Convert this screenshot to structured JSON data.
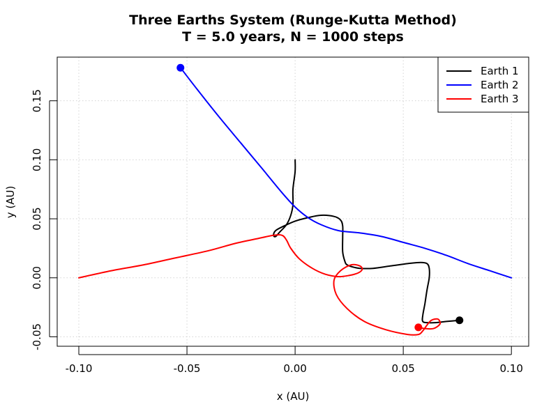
{
  "chart_data": {
    "type": "line",
    "title": "Three Earths System (Runge-Kutta Method)",
    "subtitle": "T = 5.0 years, N = 1000 steps",
    "xlabel": "x (AU)",
    "ylabel": "y (AU)",
    "xlim": [
      -0.11,
      0.108
    ],
    "ylim": [
      -0.058,
      0.187
    ],
    "xticks": [
      -0.1,
      -0.05,
      0.0,
      0.05,
      0.1
    ],
    "xtick_labels": [
      "-0.10",
      "-0.05",
      "0.00",
      "0.05",
      "0.10"
    ],
    "yticks": [
      -0.05,
      0.0,
      0.05,
      0.1,
      0.15
    ],
    "ytick_labels": [
      "-0.05",
      "0.00",
      "0.05",
      "0.10",
      "0.15"
    ],
    "grid": true,
    "legend_position": "top-right",
    "series": [
      {
        "name": "Earth 1",
        "color": "#000000",
        "points": [
          [
            0.0,
            0.1
          ],
          [
            0.0,
            0.09
          ],
          [
            -0.001,
            0.075
          ],
          [
            -0.001,
            0.062
          ],
          [
            -0.002,
            0.053
          ],
          [
            -0.004,
            0.045
          ],
          [
            -0.007,
            0.039
          ],
          [
            -0.009,
            0.035
          ],
          [
            -0.01,
            0.036
          ],
          [
            -0.009,
            0.04
          ],
          [
            -0.005,
            0.044
          ],
          [
            0.0,
            0.048
          ],
          [
            0.006,
            0.051
          ],
          [
            0.012,
            0.053
          ],
          [
            0.018,
            0.052
          ],
          [
            0.021,
            0.049
          ],
          [
            0.022,
            0.044
          ],
          [
            0.022,
            0.035
          ],
          [
            0.022,
            0.022
          ],
          [
            0.023,
            0.014
          ],
          [
            0.024,
            0.011
          ],
          [
            0.027,
            0.009
          ],
          [
            0.03,
            0.008
          ],
          [
            0.036,
            0.008
          ],
          [
            0.044,
            0.01
          ],
          [
            0.052,
            0.012
          ],
          [
            0.058,
            0.013
          ],
          [
            0.061,
            0.012
          ],
          [
            0.062,
            0.008
          ],
          [
            0.062,
            0.0
          ],
          [
            0.061,
            -0.01
          ],
          [
            0.06,
            -0.022
          ],
          [
            0.059,
            -0.032
          ],
          [
            0.059,
            -0.037
          ],
          [
            0.061,
            -0.038
          ],
          [
            0.065,
            -0.038
          ],
          [
            0.07,
            -0.037
          ],
          [
            0.076,
            -0.036
          ]
        ],
        "end_point": [
          0.076,
          -0.036
        ]
      },
      {
        "name": "Earth 2",
        "color": "#0000ff",
        "points": [
          [
            -0.053,
            0.178
          ],
          [
            -0.045,
            0.159
          ],
          [
            -0.035,
            0.136
          ],
          [
            -0.025,
            0.114
          ],
          [
            -0.015,
            0.092
          ],
          [
            -0.006,
            0.072
          ],
          [
            0.0,
            0.06
          ],
          [
            0.006,
            0.051
          ],
          [
            0.012,
            0.045
          ],
          [
            0.02,
            0.04
          ],
          [
            0.03,
            0.038
          ],
          [
            0.04,
            0.035
          ],
          [
            0.05,
            0.03
          ],
          [
            0.06,
            0.025
          ],
          [
            0.07,
            0.019
          ],
          [
            0.08,
            0.012
          ],
          [
            0.09,
            0.006
          ],
          [
            0.1,
            0.0
          ]
        ],
        "end_point": [
          -0.053,
          0.178
        ]
      },
      {
        "name": "Earth 3",
        "color": "#ff0000",
        "points": [
          [
            -0.1,
            0.0
          ],
          [
            -0.085,
            0.006
          ],
          [
            -0.07,
            0.011
          ],
          [
            -0.055,
            0.017
          ],
          [
            -0.04,
            0.023
          ],
          [
            -0.028,
            0.029
          ],
          [
            -0.018,
            0.033
          ],
          [
            -0.01,
            0.036
          ],
          [
            -0.006,
            0.036
          ],
          [
            -0.004,
            0.032
          ],
          [
            -0.002,
            0.025
          ],
          [
            0.002,
            0.016
          ],
          [
            0.008,
            0.008
          ],
          [
            0.014,
            0.003
          ],
          [
            0.02,
            0.001
          ],
          [
            0.025,
            0.002
          ],
          [
            0.029,
            0.004
          ],
          [
            0.031,
            0.007
          ],
          [
            0.03,
            0.01
          ],
          [
            0.026,
            0.011
          ],
          [
            0.021,
            0.006
          ],
          [
            0.018,
            -0.002
          ],
          [
            0.019,
            -0.014
          ],
          [
            0.024,
            -0.026
          ],
          [
            0.032,
            -0.037
          ],
          [
            0.042,
            -0.044
          ],
          [
            0.052,
            -0.048
          ],
          [
            0.057,
            -0.048
          ],
          [
            0.059,
            -0.045
          ],
          [
            0.061,
            -0.04
          ],
          [
            0.063,
            -0.036
          ],
          [
            0.066,
            -0.035
          ],
          [
            0.067,
            -0.039
          ],
          [
            0.064,
            -0.043
          ],
          [
            0.06,
            -0.043
          ],
          [
            0.057,
            -0.042
          ]
        ],
        "end_point": [
          0.057,
          -0.042
        ]
      }
    ]
  }
}
